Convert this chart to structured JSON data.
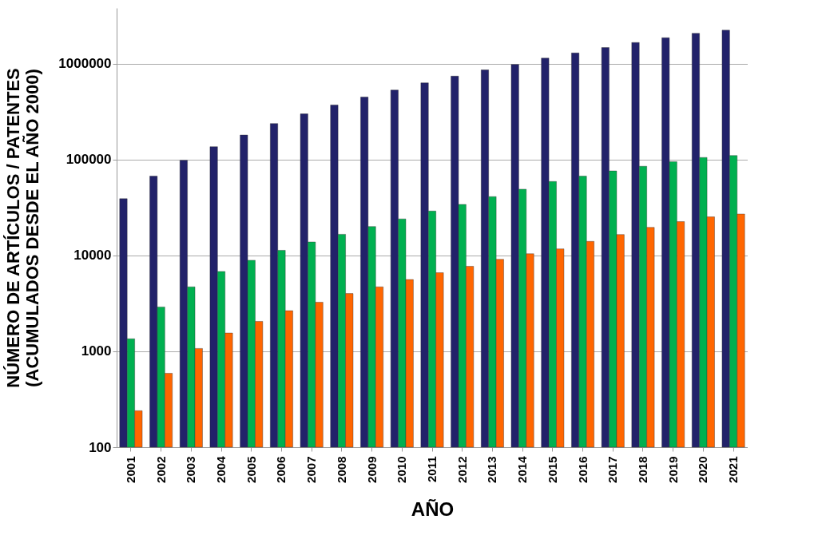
{
  "chart_data": {
    "type": "bar",
    "xlabel": "AÑO",
    "ylabel": "NÚMERO DE ARTÍCULOS / PATENTES\n(ACUMULADOS DESDE EL AÑO 2000)",
    "categories": [
      "2001",
      "2002",
      "2003",
      "2004",
      "2005",
      "2006",
      "2007",
      "2008",
      "2009",
      "2010",
      "2011",
      "2012",
      "2013",
      "2014",
      "2015",
      "2016",
      "2017",
      "2018",
      "2019",
      "2020",
      "2021"
    ],
    "series": [
      {
        "color": "#22226a",
        "values": [
          39000,
          67000,
          98000,
          136000,
          180000,
          237000,
          299000,
          370000,
          447000,
          530000,
          630000,
          740000,
          860000,
          980000,
          1140000,
          1290000,
          1470000,
          1660000,
          1860000,
          2070000,
          2230000
        ]
      },
      {
        "color": "#00b050",
        "values": [
          1350,
          2900,
          4700,
          6800,
          8900,
          11300,
          13800,
          16600,
          20000,
          24000,
          29000,
          34000,
          41000,
          49000,
          59000,
          67000,
          76000,
          85000,
          95000,
          105000,
          110000
        ]
      },
      {
        "color": "#ff6600",
        "values": [
          240,
          590,
          1070,
          1550,
          2050,
          2650,
          3250,
          4000,
          4700,
          5600,
          6600,
          7700,
          9100,
          10400,
          11700,
          14000,
          16500,
          19600,
          22500,
          25200,
          27000
        ]
      }
    ],
    "log": true,
    "ylim": [
      100,
      3800000
    ],
    "yticks": [
      100,
      1000,
      10000,
      100000,
      1000000
    ],
    "grid": "y",
    "legend": false
  }
}
